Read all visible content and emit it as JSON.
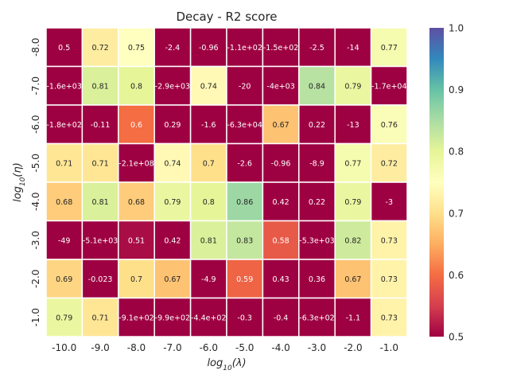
{
  "chart_data": {
    "type": "heatmap",
    "title": "Decay - R2 score",
    "xlabel_base": "log",
    "xlabel_sub": "10",
    "xlabel_arg": "(λ)",
    "ylabel_base": "log",
    "ylabel_sub": "10",
    "ylabel_arg": "(η)",
    "x_categories": [
      "-10.0",
      "-9.0",
      "-8.0",
      "-7.0",
      "-6.0",
      "-5.0",
      "-4.0",
      "-3.0",
      "-2.0",
      "-1.0"
    ],
    "y_categories": [
      "-8.0",
      "-7.0",
      "-6.0",
      "-5.0",
      "-4.0",
      "-3.0",
      "-2.0",
      "-1.0"
    ],
    "values": [
      [
        0.5,
        0.72,
        0.75,
        -2.4,
        -0.96,
        -110,
        -150,
        -2.5,
        -14,
        0.77
      ],
      [
        -1600,
        0.81,
        0.8,
        -2900,
        0.74,
        -20,
        -4000,
        0.84,
        0.79,
        -17000
      ],
      [
        -180,
        -0.11,
        0.6,
        0.29,
        -1.6,
        -63000,
        0.67,
        0.22,
        -13,
        0.76
      ],
      [
        0.71,
        0.71,
        -210000000,
        0.74,
        0.7,
        -2.6,
        -0.96,
        -8.9,
        0.77,
        0.72
      ],
      [
        0.68,
        0.81,
        0.68,
        0.79,
        0.8,
        0.86,
        0.42,
        0.22,
        0.79,
        -3
      ],
      [
        -49,
        -5100,
        0.51,
        0.42,
        0.81,
        0.83,
        0.58,
        -5300,
        0.82,
        0.73
      ],
      [
        0.69,
        -0.023,
        0.7,
        0.67,
        -4.9,
        0.59,
        0.43,
        0.36,
        0.67,
        0.73
      ],
      [
        0.79,
        0.71,
        -910,
        -990,
        -440,
        -0.3,
        -0.4,
        -630,
        -1.1,
        0.73
      ]
    ],
    "annotations": [
      [
        "0.5",
        "0.72",
        "0.75",
        "-2.4",
        "-0.96",
        "-1.1e+02",
        "-1.5e+02",
        "-2.5",
        "-14",
        "0.77"
      ],
      [
        "-1.6e+03",
        "0.81",
        "0.8",
        "-2.9e+03",
        "0.74",
        "-20",
        "-4e+03",
        "0.84",
        "0.79",
        "-1.7e+04"
      ],
      [
        "-1.8e+02",
        "-0.11",
        "0.6",
        "0.29",
        "-1.6",
        "-6.3e+04",
        "0.67",
        "0.22",
        "-13",
        "0.76"
      ],
      [
        "0.71",
        "0.71",
        "-2.1e+08",
        "0.74",
        "0.7",
        "-2.6",
        "-0.96",
        "-8.9",
        "0.77",
        "0.72"
      ],
      [
        "0.68",
        "0.81",
        "0.68",
        "0.79",
        "0.8",
        "0.86",
        "0.42",
        "0.22",
        "0.79",
        "-3"
      ],
      [
        "-49",
        "-5.1e+03",
        "0.51",
        "0.42",
        "0.81",
        "0.83",
        "0.58",
        "-5.3e+03",
        "0.82",
        "0.73"
      ],
      [
        "0.69",
        "-0.023",
        "0.7",
        "0.67",
        "-4.9",
        "0.59",
        "0.43",
        "0.36",
        "0.67",
        "0.73"
      ],
      [
        "0.79",
        "0.71",
        "-9.1e+02",
        "-9.9e+02",
        "-4.4e+02",
        "-0.3",
        "-0.4",
        "-6.3e+02",
        "-1.1",
        "0.73"
      ]
    ],
    "color_range": [
      0.5,
      1.0
    ],
    "colormap": "Spectral",
    "colorbar_ticks": [
      "0.5",
      "0.6",
      "0.7",
      "0.8",
      "0.9",
      "1.0"
    ],
    "grid": true,
    "gridline_color": "#ffffff"
  }
}
